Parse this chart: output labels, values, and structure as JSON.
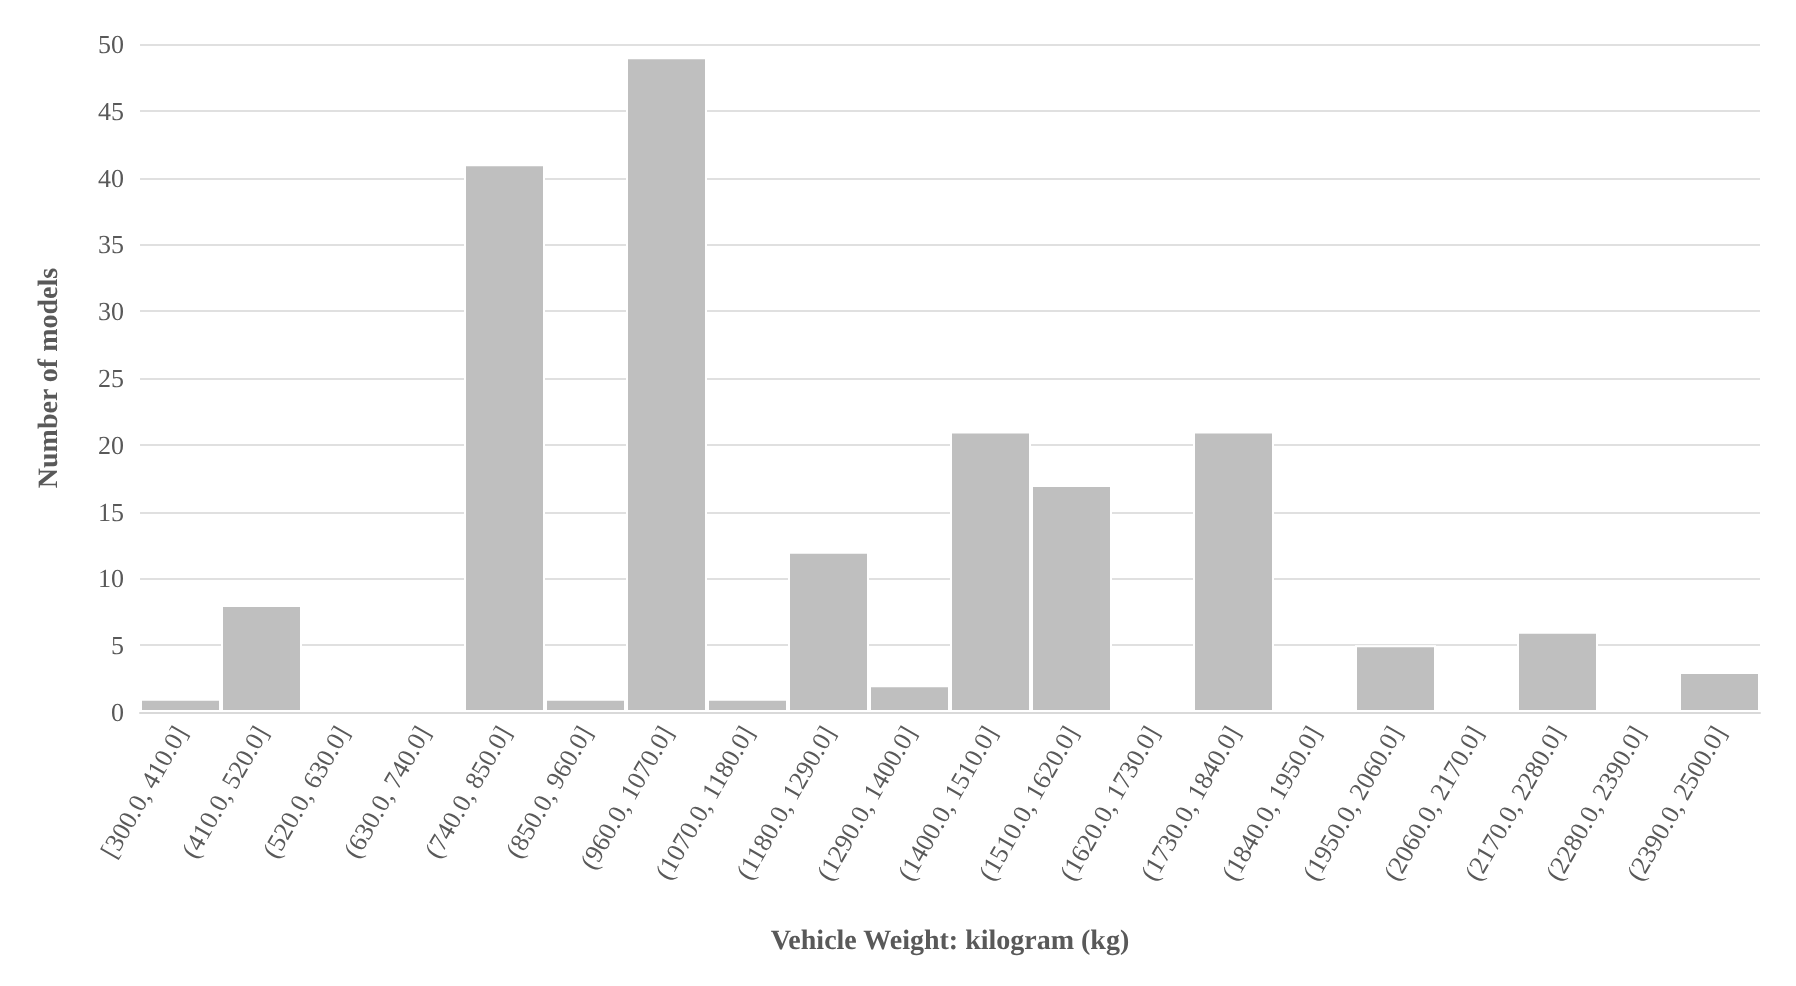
{
  "chart_data": {
    "type": "bar",
    "xlabel": "Vehicle Weight: kilogram (kg)",
    "ylabel": "Number of models",
    "categories": [
      "[300.0, 410.0]",
      "(410.0, 520.0]",
      "(520.0, 630.0]",
      "(630.0, 740.0]",
      "(740.0, 850.0]",
      "(850.0, 960.0]",
      "(960.0, 1070.0]",
      "(1070.0, 1180.0]",
      "(1180.0, 1290.0]",
      "(1290.0, 1400.0]",
      "(1400.0, 1510.0]",
      "(1510.0, 1620.0]",
      "(1620.0, 1730.0]",
      "(1730.0, 1840.0]",
      "(1840.0, 1950.0]",
      "(1950.0, 2060.0]",
      "(2060.0, 2170.0]",
      "(2170.0, 2280.0]",
      "(2280.0, 2390.0]",
      "(2390.0, 2500.0]"
    ],
    "values": [
      1,
      8,
      0,
      0,
      41,
      1,
      49,
      1,
      12,
      2,
      21,
      17,
      0,
      21,
      0,
      5,
      0,
      6,
      0,
      3
    ],
    "color": "#bfbfbf",
    "ylim": [
      0,
      50
    ],
    "yticks": [
      0,
      5,
      10,
      15,
      20,
      25,
      30,
      35,
      40,
      45,
      50
    ],
    "grid": "y"
  }
}
